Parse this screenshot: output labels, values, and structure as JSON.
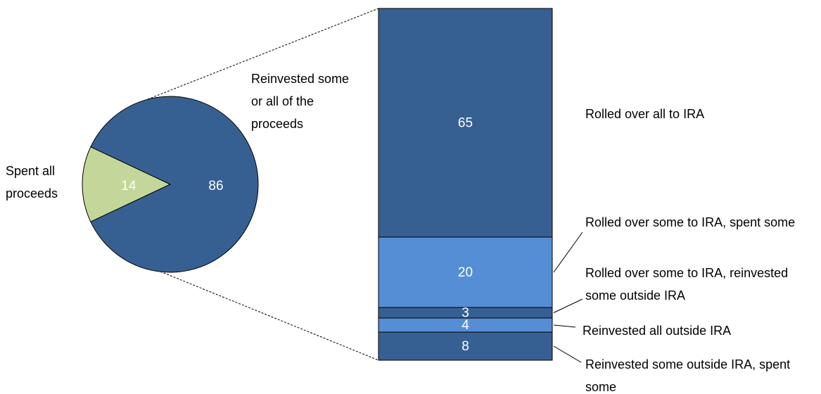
{
  "chart_data": {
    "type": "pie-of-bar",
    "pie": {
      "categories": [
        "Spent all proceeds",
        "Reinvested some or all of the proceeds"
      ],
      "values": [
        14,
        86
      ],
      "colors": [
        "#c4d79b",
        "#376092"
      ]
    },
    "bar": {
      "categories": [
        "Rolled over all to IRA",
        "Rolled over some to IRA, spent some",
        "Rolled over some to IRA, reinvested some outside IRA",
        "Reinvested all outside IRA",
        "Reinvested some outside IRA, spent some"
      ],
      "values": [
        65,
        20,
        3,
        4,
        8
      ],
      "colors": [
        "#376092",
        "#558ed5",
        "#376092",
        "#558ed5",
        "#376092"
      ]
    }
  }
}
